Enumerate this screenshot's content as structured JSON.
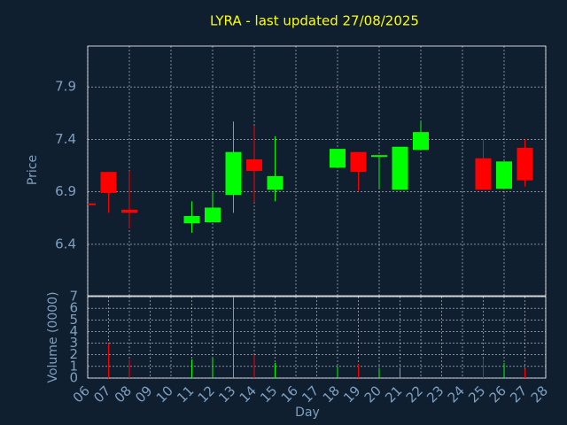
{
  "chart_data": {
    "type": "candlestick",
    "title": "LYRA - last updated 27/08/2025",
    "ylabel": "Price",
    "xlabel": "Day",
    "categories": [
      "06",
      "07",
      "08",
      "09",
      "10",
      "11",
      "12",
      "13",
      "14",
      "15",
      "16",
      "17",
      "18",
      "19",
      "20",
      "21",
      "22",
      "23",
      "24",
      "25",
      "26",
      "27",
      "28"
    ],
    "open": [
      6.79,
      7.09,
      6.73,
      null,
      null,
      6.6,
      6.61,
      6.87,
      7.21,
      6.92,
      null,
      null,
      7.13,
      7.28,
      7.24,
      6.92,
      7.3,
      null,
      null,
      7.22,
      6.93,
      7.32,
      null
    ],
    "high": [
      6.79,
      7.09,
      7.1,
      null,
      null,
      6.81,
      6.9,
      7.57,
      7.53,
      7.43,
      null,
      null,
      7.31,
      7.28,
      7.25,
      7.33,
      7.57,
      null,
      null,
      7.4,
      7.19,
      7.4,
      null
    ],
    "low": [
      6.78,
      6.7,
      6.55,
      null,
      null,
      6.51,
      6.61,
      6.7,
      6.8,
      6.81,
      null,
      null,
      7.13,
      6.91,
      6.93,
      6.92,
      7.3,
      null,
      null,
      6.92,
      6.93,
      6.95,
      null
    ],
    "close": [
      6.78,
      6.89,
      6.7,
      null,
      null,
      6.67,
      6.75,
      7.28,
      7.1,
      7.05,
      null,
      null,
      7.31,
      7.09,
      7.25,
      7.33,
      7.47,
      null,
      null,
      6.92,
      7.19,
      7.01,
      null
    ],
    "up_color": "#00ff00",
    "down_color": "#ff0000",
    "ylim": [
      5.91,
      8.29
    ],
    "yticks": [
      6.4,
      6.9,
      7.4,
      7.9
    ],
    "grid": true,
    "volume": {
      "ylabel": "Volume (0000)",
      "values": [
        0,
        3.0,
        1.6,
        null,
        null,
        1.6,
        1.7,
        7.0,
        2.0,
        1.3,
        null,
        null,
        1.0,
        1.2,
        0.8,
        0.8,
        0,
        null,
        null,
        1.7,
        1.3,
        0.8,
        null
      ],
      "ylim": [
        0,
        7
      ],
      "yticks": [
        0,
        1,
        2,
        3,
        4,
        5,
        6,
        7
      ]
    }
  }
}
